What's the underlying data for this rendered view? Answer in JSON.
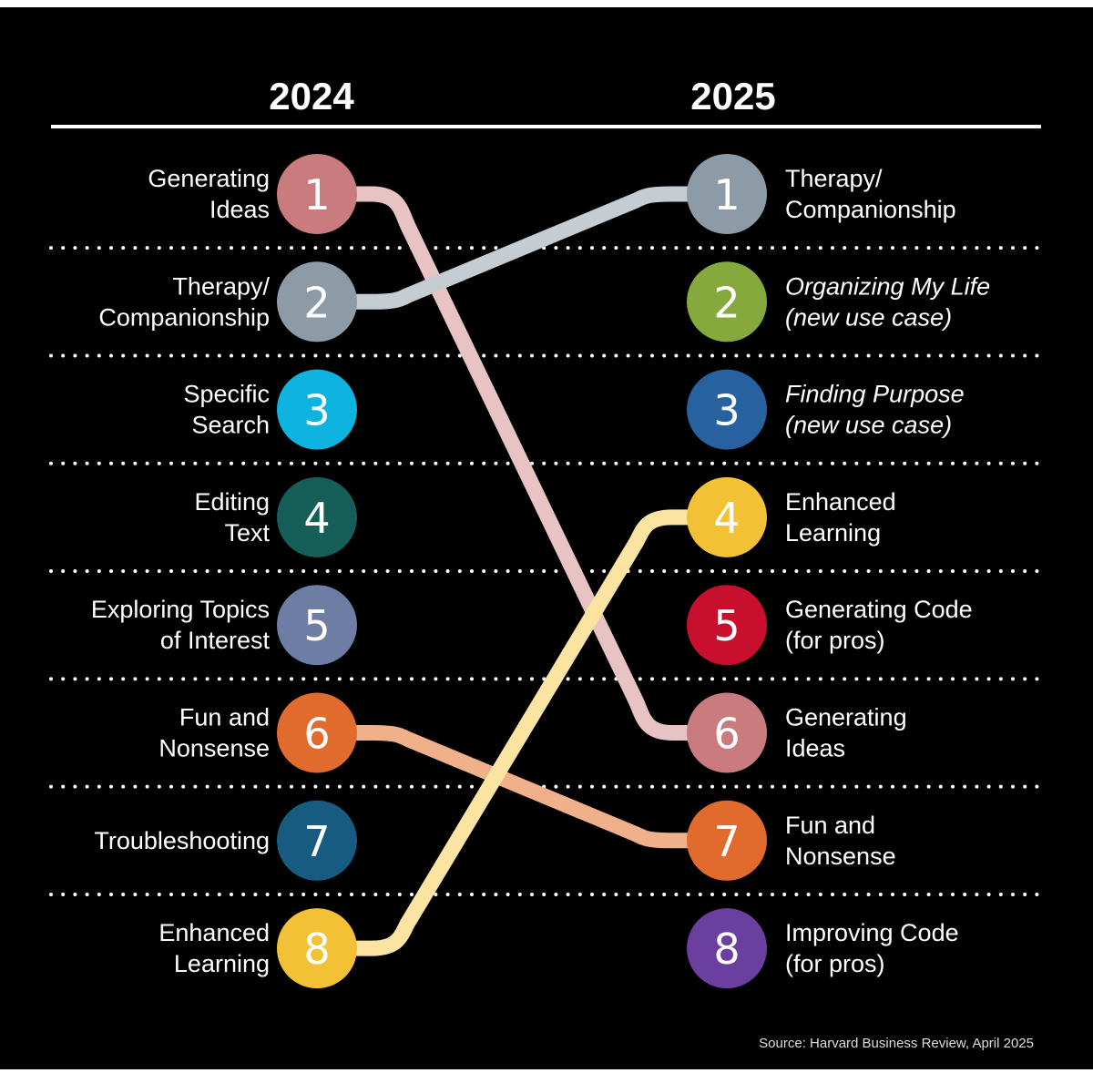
{
  "chart_data": {
    "type": "slope",
    "title": "",
    "columns": [
      "2024",
      "2025"
    ],
    "left": [
      {
        "rank": 1,
        "label": [
          "Generating",
          "Ideas"
        ],
        "color": "#c97b7e",
        "italic": false
      },
      {
        "rank": 2,
        "label": [
          "Therapy/",
          "Companionship"
        ],
        "color": "#8c9ba6",
        "italic": false
      },
      {
        "rank": 3,
        "label": [
          "Specific",
          "Search"
        ],
        "color": "#0fb3df",
        "italic": false
      },
      {
        "rank": 4,
        "label": [
          "Editing",
          "Text"
        ],
        "color": "#155f58",
        "italic": false
      },
      {
        "rank": 5,
        "label": [
          "Exploring Topics",
          "of Interest"
        ],
        "color": "#6e7da3",
        "italic": false
      },
      {
        "rank": 6,
        "label": [
          "Fun and",
          "Nonsense"
        ],
        "color": "#e06b2c",
        "italic": false
      },
      {
        "rank": 7,
        "label": [
          "Troubleshooting"
        ],
        "color": "#175c80",
        "italic": false
      },
      {
        "rank": 8,
        "label": [
          "Enhanced",
          "Learning"
        ],
        "color": "#f3c136",
        "italic": false
      }
    ],
    "right": [
      {
        "rank": 1,
        "label": [
          "Therapy/",
          "Companionship"
        ],
        "color": "#8c9ba6",
        "italic": false
      },
      {
        "rank": 2,
        "label": [
          "Organizing My Life",
          "(new use case)"
        ],
        "color": "#86a93e",
        "italic": true
      },
      {
        "rank": 3,
        "label": [
          "Finding Purpose",
          "(new use case)"
        ],
        "color": "#27619f",
        "italic": true
      },
      {
        "rank": 4,
        "label": [
          "Enhanced",
          "Learning"
        ],
        "color": "#f3c136",
        "italic": false
      },
      {
        "rank": 5,
        "label": [
          "Generating Code",
          "(for pros)"
        ],
        "color": "#c8102e",
        "italic": false
      },
      {
        "rank": 6,
        "label": [
          "Generating",
          "Ideas"
        ],
        "color": "#c97b7e",
        "italic": false
      },
      {
        "rank": 7,
        "label": [
          "Fun and",
          "Nonsense"
        ],
        "color": "#e06b2c",
        "italic": false
      },
      {
        "rank": 8,
        "label": [
          "Improving Code",
          "(for pros)"
        ],
        "color": "#6b3fa0",
        "italic": false
      }
    ],
    "connections": [
      {
        "name": "Generating Ideas",
        "from": 1,
        "to": 6,
        "color": "#e8c3c4"
      },
      {
        "name": "Therapy/Companionship",
        "from": 2,
        "to": 1,
        "color": "#c5cdd3"
      },
      {
        "name": "Fun and Nonsense",
        "from": 6,
        "to": 7,
        "color": "#efb08a"
      },
      {
        "name": "Enhanced Learning",
        "from": 8,
        "to": 4,
        "color": "#fbe4a1"
      }
    ],
    "source": "Source: Harvard Business Review, April 2025"
  }
}
